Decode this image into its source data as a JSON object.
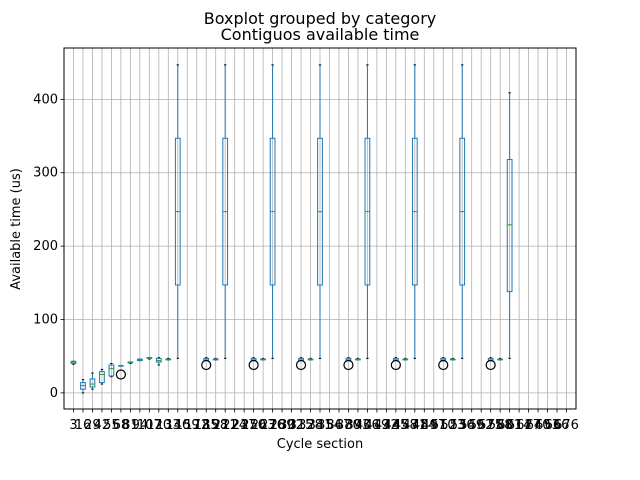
{
  "figure": {
    "suptitle": "Boxplot grouped by category"
  },
  "colors": {
    "box": "#1f77b4",
    "median": "#2ca02c",
    "grid": "#b0b0b0",
    "flier": "#000000",
    "axes": "#000000"
  },
  "chart_data": {
    "type": "box",
    "title": "Contiguos available time",
    "xlabel": "Cycle section",
    "ylabel": "Available time (us)",
    "ylim": [
      -22,
      470
    ],
    "yticks": [
      0,
      100,
      200,
      300,
      400
    ],
    "grid": true,
    "categories": [
      "3",
      "16",
      "29",
      "42",
      "55",
      "68",
      "81",
      "94",
      "107",
      "120",
      "133",
      "146",
      "159",
      "172",
      "185",
      "198",
      "211",
      "224",
      "237",
      "250",
      "263",
      "276",
      "289",
      "302",
      "315",
      "328",
      "341",
      "354",
      "367",
      "380",
      "393",
      "406",
      "419",
      "432",
      "445",
      "458",
      "471",
      "484",
      "497",
      "510",
      "523",
      "536",
      "549",
      "562",
      "575",
      "588",
      "601",
      "614",
      "627",
      "640",
      "653",
      "666",
      "676"
    ],
    "boxes": [
      {
        "i": 0,
        "whislo": 39,
        "q1": 40,
        "med": 41,
        "q3": 43,
        "whishi": 43,
        "fliers": []
      },
      {
        "i": 1,
        "whislo": 0,
        "q1": 5,
        "med": 10,
        "q3": 14,
        "whishi": 18,
        "fliers": []
      },
      {
        "i": 2,
        "whislo": 5,
        "q1": 8,
        "med": 12,
        "q3": 19,
        "whishi": 27,
        "fliers": []
      },
      {
        "i": 3,
        "whislo": 12,
        "q1": 14,
        "med": 25,
        "q3": 29,
        "whishi": 32,
        "fliers": []
      },
      {
        "i": 4,
        "whislo": 22,
        "q1": 23,
        "med": 33,
        "q3": 38,
        "whishi": 40,
        "fliers": []
      },
      {
        "i": 5,
        "whislo": 37,
        "q1": 37,
        "med": 37,
        "q3": 37,
        "whishi": 37,
        "fliers": [
          25
        ]
      },
      {
        "i": 6,
        "whislo": 40,
        "q1": 41,
        "med": 41,
        "q3": 42,
        "whishi": 42,
        "fliers": []
      },
      {
        "i": 7,
        "whislo": 44,
        "q1": 44,
        "med": 45,
        "q3": 46,
        "whishi": 46,
        "fliers": []
      },
      {
        "i": 8,
        "whislo": 46,
        "q1": 47,
        "med": 47,
        "q3": 48,
        "whishi": 48,
        "fliers": []
      },
      {
        "i": 9,
        "whislo": 38,
        "q1": 42,
        "med": 44,
        "q3": 47,
        "whishi": 48,
        "fliers": []
      },
      {
        "i": 10,
        "whislo": 45,
        "q1": 45,
        "med": 46,
        "q3": 46,
        "whishi": 47,
        "fliers": []
      },
      {
        "i": 11,
        "whislo": 47,
        "q1": 147,
        "med": 247,
        "q3": 347,
        "whishi": 447,
        "fliers": []
      },
      {
        "i": 14,
        "whislo": 44,
        "q1": 44,
        "med": 45,
        "q3": 47,
        "whishi": 48,
        "fliers": [
          38
        ]
      },
      {
        "i": 15,
        "whislo": 45,
        "q1": 45,
        "med": 46,
        "q3": 46,
        "whishi": 47,
        "fliers": []
      },
      {
        "i": 16,
        "whislo": 47,
        "q1": 147,
        "med": 247,
        "q3": 347,
        "whishi": 447,
        "fliers": []
      },
      {
        "i": 19,
        "whislo": 44,
        "q1": 44,
        "med": 45,
        "q3": 47,
        "whishi": 48,
        "fliers": [
          38
        ]
      },
      {
        "i": 20,
        "whislo": 45,
        "q1": 45,
        "med": 46,
        "q3": 46,
        "whishi": 47,
        "fliers": []
      },
      {
        "i": 21,
        "whislo": 47,
        "q1": 147,
        "med": 247,
        "q3": 347,
        "whishi": 447,
        "fliers": []
      },
      {
        "i": 24,
        "whislo": 44,
        "q1": 44,
        "med": 45,
        "q3": 47,
        "whishi": 48,
        "fliers": [
          38
        ]
      },
      {
        "i": 25,
        "whislo": 45,
        "q1": 45,
        "med": 46,
        "q3": 46,
        "whishi": 47,
        "fliers": []
      },
      {
        "i": 26,
        "whislo": 47,
        "q1": 147,
        "med": 247,
        "q3": 347,
        "whishi": 447,
        "fliers": []
      },
      {
        "i": 29,
        "whislo": 44,
        "q1": 44,
        "med": 45,
        "q3": 47,
        "whishi": 48,
        "fliers": [
          38
        ]
      },
      {
        "i": 30,
        "whislo": 45,
        "q1": 45,
        "med": 46,
        "q3": 46,
        "whishi": 47,
        "fliers": []
      },
      {
        "i": 31,
        "whislo": 47,
        "q1": 147,
        "med": 247,
        "q3": 347,
        "whishi": 447,
        "fliers": []
      },
      {
        "i": 34,
        "whislo": 44,
        "q1": 44,
        "med": 45,
        "q3": 47,
        "whishi": 48,
        "fliers": [
          38
        ]
      },
      {
        "i": 35,
        "whislo": 45,
        "q1": 45,
        "med": 46,
        "q3": 46,
        "whishi": 47,
        "fliers": []
      },
      {
        "i": 36,
        "whislo": 47,
        "q1": 147,
        "med": 247,
        "q3": 347,
        "whishi": 447,
        "fliers": []
      },
      {
        "i": 39,
        "whislo": 44,
        "q1": 44,
        "med": 45,
        "q3": 47,
        "whishi": 48,
        "fliers": [
          38
        ]
      },
      {
        "i": 40,
        "whislo": 45,
        "q1": 45,
        "med": 46,
        "q3": 46,
        "whishi": 47,
        "fliers": []
      },
      {
        "i": 41,
        "whislo": 47,
        "q1": 147,
        "med": 247,
        "q3": 347,
        "whishi": 447,
        "fliers": []
      },
      {
        "i": 44,
        "whislo": 44,
        "q1": 44,
        "med": 45,
        "q3": 47,
        "whishi": 48,
        "fliers": [
          38
        ]
      },
      {
        "i": 45,
        "whislo": 45,
        "q1": 45,
        "med": 46,
        "q3": 46,
        "whishi": 47,
        "fliers": []
      },
      {
        "i": 46,
        "whislo": 47,
        "q1": 138,
        "med": 229,
        "q3": 318,
        "whishi": 409,
        "fliers": []
      }
    ]
  }
}
